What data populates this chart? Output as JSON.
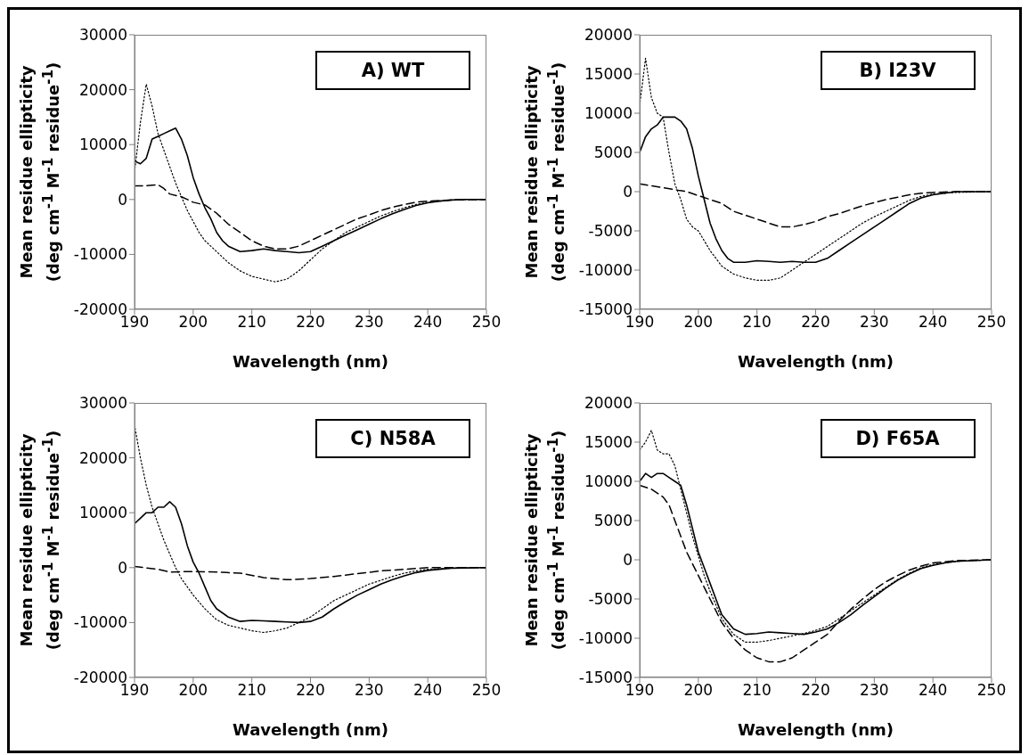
{
  "chart_data": [
    {
      "type": "line",
      "title": "A) WT",
      "xlabel": "Wavelength (nm)",
      "ylabel": "Mean residue ellipticity\n(deg cm$^{-1}$ M$^{-1}$ residue$^{-1}$)",
      "xlim": [
        190,
        250
      ],
      "xticks": [
        190,
        200,
        210,
        220,
        230,
        240,
        250
      ],
      "ylim": [
        -20000,
        30000
      ],
      "yticks": [
        -20000,
        -10000,
        0,
        10000,
        20000,
        30000
      ],
      "grid": false,
      "legend": false,
      "marker": "none",
      "series": [
        {
          "color": "#000000",
          "line_style": "solid",
          "x": [
            190,
            191,
            192,
            193,
            194,
            195,
            196,
            197,
            198,
            199,
            200,
            201,
            202,
            203,
            204,
            205,
            206,
            207,
            208,
            210,
            212,
            214,
            216,
            218,
            220,
            222,
            224,
            226,
            228,
            230,
            232,
            234,
            236,
            238,
            240,
            242,
            244,
            246,
            248,
            250
          ],
          "values": [
            7000,
            6500,
            7500,
            11000,
            11500,
            12000,
            12500,
            13000,
            11000,
            8000,
            4000,
            1000,
            -1500,
            -3500,
            -6000,
            -7500,
            -8500,
            -9000,
            -9500,
            -9300,
            -9000,
            -9300,
            -9500,
            -9700,
            -9500,
            -8500,
            -7500,
            -6500,
            -5500,
            -4500,
            -3500,
            -2600,
            -1800,
            -1100,
            -600,
            -300,
            -100,
            0,
            0,
            0
          ]
        },
        {
          "color": "#000000",
          "line_style": "dotted",
          "x": [
            190,
            191,
            192,
            193,
            194,
            195,
            196,
            197,
            198,
            199,
            200,
            201,
            202,
            204,
            206,
            208,
            210,
            212,
            214,
            216,
            218,
            220,
            222,
            224,
            226,
            228,
            230,
            232,
            234,
            236,
            238,
            240,
            242,
            244,
            246,
            248,
            250
          ],
          "values": [
            5000,
            14000,
            21000,
            17000,
            12000,
            9000,
            6000,
            3000,
            500,
            -2000,
            -4000,
            -6000,
            -7500,
            -9500,
            -11500,
            -13000,
            -14000,
            -14500,
            -15000,
            -14500,
            -13000,
            -11000,
            -9000,
            -7500,
            -6000,
            -5000,
            -4000,
            -3000,
            -2200,
            -1500,
            -900,
            -500,
            -300,
            -100,
            0,
            0,
            0
          ]
        },
        {
          "color": "#000000",
          "line_style": "dashed",
          "x": [
            190,
            192,
            194,
            195,
            196,
            198,
            200,
            202,
            204,
            206,
            208,
            210,
            212,
            214,
            216,
            218,
            220,
            222,
            224,
            226,
            228,
            230,
            232,
            234,
            236,
            238,
            240,
            244,
            250
          ],
          "values": [
            2500,
            2500,
            2700,
            2000,
            1000,
            500,
            -500,
            -1000,
            -2500,
            -4500,
            -6000,
            -7500,
            -8500,
            -9000,
            -9000,
            -8500,
            -7500,
            -6500,
            -5500,
            -4500,
            -3500,
            -2800,
            -2000,
            -1400,
            -900,
            -500,
            -300,
            -100,
            0
          ]
        }
      ]
    },
    {
      "type": "line",
      "title": "B) I23V",
      "xlabel": "Wavelength (nm)",
      "ylabel": "Mean residue ellipticity\n(deg cm$^{-1}$ M$^{-1}$ residue$^{-1}$)",
      "xlim": [
        190,
        250
      ],
      "xticks": [
        190,
        200,
        210,
        220,
        230,
        240,
        250
      ],
      "ylim": [
        -15000,
        20000
      ],
      "yticks": [
        -15000,
        -10000,
        -5000,
        0,
        5000,
        10000,
        15000,
        20000
      ],
      "grid": false,
      "legend": false,
      "marker": "none",
      "series": [
        {
          "color": "#000000",
          "line_style": "solid",
          "x": [
            190,
            191,
            192,
            193,
            194,
            195,
            196,
            197,
            198,
            199,
            200,
            201,
            202,
            203,
            204,
            205,
            206,
            208,
            210,
            212,
            214,
            216,
            218,
            220,
            222,
            224,
            226,
            228,
            230,
            232,
            234,
            236,
            238,
            240,
            242,
            244,
            250
          ],
          "values": [
            5000,
            7000,
            8000,
            8500,
            9500,
            9500,
            9500,
            9000,
            8000,
            5500,
            2000,
            -1000,
            -4000,
            -6000,
            -7500,
            -8500,
            -9000,
            -9000,
            -8800,
            -8900,
            -9000,
            -8900,
            -9000,
            -9000,
            -8500,
            -7500,
            -6500,
            -5500,
            -4500,
            -3500,
            -2500,
            -1500,
            -800,
            -400,
            -200,
            0,
            0
          ]
        },
        {
          "color": "#000000",
          "line_style": "dotted",
          "x": [
            190,
            191,
            192,
            193,
            194,
            195,
            196,
            197,
            198,
            199,
            200,
            202,
            204,
            206,
            208,
            210,
            212,
            214,
            216,
            218,
            220,
            222,
            224,
            226,
            228,
            230,
            232,
            234,
            236,
            238,
            240,
            244,
            250
          ],
          "values": [
            11000,
            17000,
            12000,
            10000,
            9500,
            5000,
            1000,
            -1000,
            -3500,
            -4500,
            -5000,
            -7500,
            -9500,
            -10500,
            -11000,
            -11300,
            -11300,
            -11000,
            -10000,
            -9000,
            -8000,
            -7000,
            -6000,
            -5000,
            -4000,
            -3200,
            -2500,
            -1800,
            -1100,
            -600,
            -300,
            -100,
            0
          ]
        },
        {
          "color": "#000000",
          "line_style": "dashed",
          "x": [
            190,
            194,
            198,
            200,
            202,
            204,
            206,
            208,
            210,
            212,
            214,
            216,
            218,
            220,
            222,
            224,
            226,
            228,
            230,
            232,
            234,
            236,
            238,
            240,
            244,
            250
          ],
          "values": [
            1000,
            500,
            0,
            -500,
            -1000,
            -1500,
            -2500,
            -3000,
            -3500,
            -4000,
            -4500,
            -4500,
            -4200,
            -3800,
            -3200,
            -2800,
            -2300,
            -1800,
            -1400,
            -1000,
            -700,
            -400,
            -200,
            -100,
            0,
            0
          ]
        }
      ]
    },
    {
      "type": "line",
      "title": "C) N58A",
      "xlabel": "Wavelength (nm)",
      "ylabel": "Mean residue ellipticity\n(deg cm$^{-1}$ M$^{-1}$ residue$^{-1}$)",
      "xlim": [
        190,
        250
      ],
      "xticks": [
        190,
        200,
        210,
        220,
        230,
        240,
        250
      ],
      "ylim": [
        -20000,
        30000
      ],
      "yticks": [
        -20000,
        -10000,
        0,
        10000,
        20000,
        30000
      ],
      "grid": false,
      "legend": false,
      "marker": "none",
      "series": [
        {
          "color": "#000000",
          "line_style": "solid",
          "x": [
            190,
            191,
            192,
            193,
            194,
            195,
            196,
            197,
            198,
            199,
            200,
            201,
            202,
            203,
            204,
            206,
            208,
            210,
            212,
            214,
            216,
            218,
            220,
            222,
            224,
            226,
            228,
            230,
            232,
            234,
            236,
            238,
            240,
            244,
            250
          ],
          "values": [
            8000,
            9000,
            10000,
            10000,
            11000,
            11000,
            12000,
            11000,
            8000,
            4000,
            1000,
            -1000,
            -3500,
            -6000,
            -7500,
            -9000,
            -9800,
            -9600,
            -9700,
            -9800,
            -9900,
            -10000,
            -9800,
            -9000,
            -7500,
            -6200,
            -5000,
            -4000,
            -3000,
            -2200,
            -1500,
            -900,
            -500,
            -100,
            0
          ]
        },
        {
          "color": "#000000",
          "line_style": "dotted",
          "x": [
            190,
            191,
            192,
            193,
            194,
            195,
            196,
            197,
            198,
            200,
            202,
            204,
            206,
            208,
            210,
            212,
            214,
            216,
            218,
            220,
            222,
            224,
            226,
            228,
            230,
            232,
            234,
            236,
            238,
            240,
            244,
            250
          ],
          "values": [
            26000,
            20000,
            15000,
            11000,
            8000,
            5000,
            2500,
            0,
            -2000,
            -5000,
            -7500,
            -9500,
            -10500,
            -11000,
            -11500,
            -11800,
            -11500,
            -11000,
            -10000,
            -9000,
            -7500,
            -6000,
            -5000,
            -4000,
            -3000,
            -2300,
            -1600,
            -1000,
            -600,
            -300,
            -100,
            0
          ]
        },
        {
          "color": "#000000",
          "line_style": "dashed",
          "x": [
            190,
            194,
            196,
            200,
            204,
            208,
            212,
            216,
            220,
            224,
            228,
            232,
            236,
            240,
            250
          ],
          "values": [
            200,
            -300,
            -800,
            -700,
            -800,
            -1000,
            -1800,
            -2200,
            -2000,
            -1600,
            -1100,
            -600,
            -300,
            0,
            0
          ]
        }
      ]
    },
    {
      "type": "line",
      "title": "D) F65A",
      "xlabel": "Wavelength (nm)",
      "ylabel": "Mean residue ellipticity\n(deg cm$^{-1}$ M$^{-1}$ residue$^{-1}$)",
      "xlim": [
        190,
        250
      ],
      "xticks": [
        190,
        200,
        210,
        220,
        230,
        240,
        250
      ],
      "ylim": [
        -15000,
        20000
      ],
      "yticks": [
        -15000,
        -10000,
        -5000,
        0,
        5000,
        10000,
        15000,
        20000
      ],
      "grid": false,
      "legend": false,
      "marker": "none",
      "series": [
        {
          "color": "#000000",
          "line_style": "solid",
          "x": [
            190,
            191,
            192,
            193,
            194,
            195,
            196,
            197,
            198,
            199,
            200,
            201,
            202,
            203,
            204,
            206,
            208,
            210,
            212,
            214,
            216,
            218,
            220,
            222,
            224,
            226,
            228,
            230,
            232,
            234,
            236,
            238,
            240,
            242,
            244,
            250
          ],
          "values": [
            10000,
            11000,
            10500,
            11000,
            11000,
            10500,
            10000,
            9500,
            7000,
            4000,
            1000,
            -1000,
            -3000,
            -5000,
            -7000,
            -8800,
            -9500,
            -9400,
            -9200,
            -9300,
            -9400,
            -9500,
            -9200,
            -8800,
            -8000,
            -7000,
            -5800,
            -4700,
            -3600,
            -2600,
            -1800,
            -1100,
            -700,
            -400,
            -200,
            0
          ]
        },
        {
          "color": "#000000",
          "line_style": "dotted",
          "x": [
            190,
            191,
            192,
            193,
            194,
            195,
            196,
            197,
            198,
            199,
            200,
            201,
            202,
            204,
            206,
            208,
            210,
            212,
            214,
            216,
            218,
            220,
            222,
            224,
            226,
            228,
            230,
            232,
            234,
            236,
            238,
            240,
            244,
            250
          ],
          "values": [
            14000,
            15000,
            16500,
            14000,
            13500,
            13500,
            12000,
            9000,
            6000,
            3000,
            500,
            -2000,
            -4000,
            -7500,
            -9500,
            -10500,
            -10500,
            -10300,
            -10000,
            -9700,
            -9400,
            -9000,
            -8500,
            -7500,
            -6500,
            -5500,
            -4500,
            -3500,
            -2500,
            -1700,
            -1000,
            -600,
            -200,
            0
          ]
        },
        {
          "color": "#000000",
          "line_style": "dashed",
          "x": [
            190,
            192,
            194,
            195,
            196,
            197,
            198,
            199,
            200,
            202,
            204,
            206,
            208,
            210,
            212,
            214,
            216,
            218,
            220,
            222,
            224,
            226,
            228,
            230,
            232,
            234,
            236,
            238,
            240,
            244,
            250
          ],
          "values": [
            9500,
            9000,
            8000,
            7000,
            5000,
            3000,
            1000,
            -500,
            -2000,
            -5000,
            -8000,
            -10000,
            -11500,
            -12500,
            -13000,
            -13000,
            -12500,
            -11500,
            -10500,
            -9500,
            -7800,
            -6300,
            -5000,
            -3800,
            -2800,
            -2000,
            -1300,
            -800,
            -400,
            -100,
            0
          ]
        }
      ]
    }
  ]
}
